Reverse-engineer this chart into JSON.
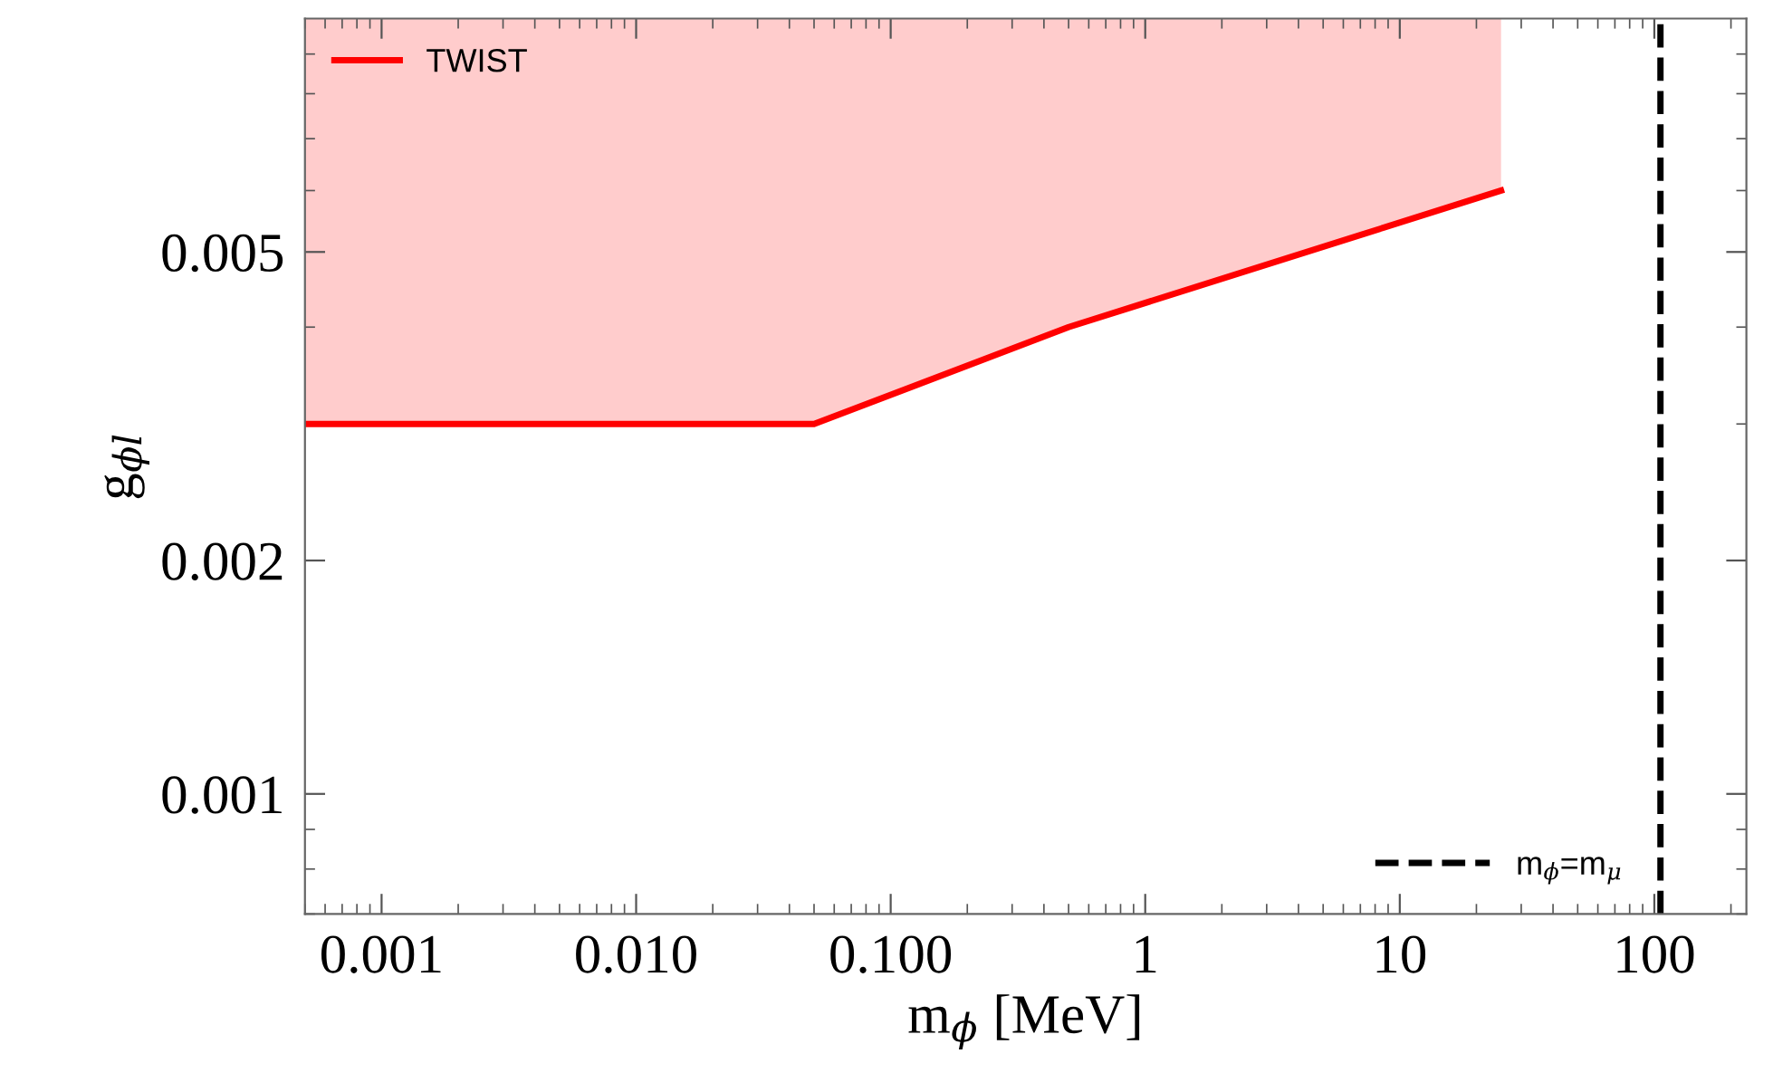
{
  "chart_data": {
    "type": "line",
    "xlabel": "m$_{ϕ}$ [MeV]",
    "ylabel": "g$_{ϕl}$",
    "series": [
      {
        "name": "TWIST",
        "color": "#ff0000",
        "x": [
          0.0005,
          0.05,
          0.5,
          25
        ],
        "values": [
          0.003,
          0.003,
          0.004,
          0.006
        ],
        "upper": [
          0.01,
          0.01,
          0.01,
          0.01
        ],
        "lower": [
          0.003,
          0.003,
          0.004,
          0.006
        ]
      }
    ],
    "ref_lines": [
      {
        "axis": "x",
        "value": 105.7,
        "label": "m$_{ϕ}$=m$_{μ}$",
        "color": "#000000",
        "line_style": "dashed"
      }
    ],
    "log": "xy",
    "xlim": [
      0.0005,
      230
    ],
    "ylim": [
      0.0007,
      0.01
    ],
    "xticks": [
      0.001,
      {
        "value": 0.01,
        "label": "0.010"
      },
      {
        "value": 0.1,
        "label": "0.100"
      },
      1,
      10,
      100
    ],
    "yticks": [
      0.001,
      0.002,
      0.005
    ],
    "grid": false,
    "legend": "top left",
    "line_style": "solid",
    "marker": "none"
  }
}
